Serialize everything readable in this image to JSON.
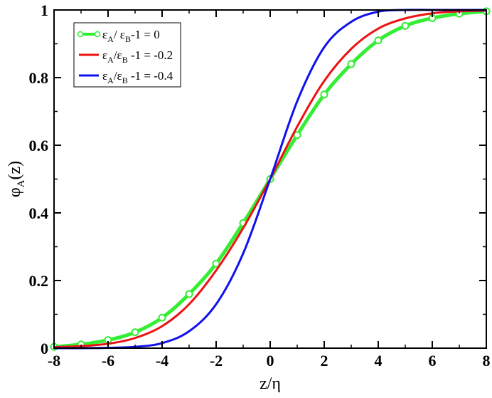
{
  "chart_data": {
    "type": "line",
    "xlabel": "z/η",
    "ylabel": "φ_A(z)",
    "ylabel_parts": {
      "main": "φ",
      "sub": "A",
      "tail": "(z)"
    },
    "xlim": [
      -8,
      8
    ],
    "ylim": [
      0,
      1
    ],
    "x_ticks": [
      "-8",
      "-6",
      "-4",
      "-2",
      "0",
      "2",
      "4",
      "6",
      "8"
    ],
    "y_ticks": [
      "0",
      "0.2",
      "0.4",
      "0.6",
      "0.8",
      "1"
    ],
    "grid": false,
    "legend_position": "top-left",
    "series": [
      {
        "name": "εA/ εB-1 = 0",
        "legend": {
          "e1": "ε",
          "s1": "A",
          "mid": "/ ε",
          "s2": "B",
          "tail": "-1 = 0"
        },
        "color": "#33ee33",
        "marker": "open-circle",
        "x": [
          -8,
          -7,
          -6,
          -5,
          -4,
          -3,
          -2,
          -1,
          0,
          1,
          2,
          3,
          4,
          5,
          6,
          7,
          8
        ],
        "y": [
          0.004,
          0.011,
          0.024,
          0.047,
          0.09,
          0.16,
          0.25,
          0.37,
          0.5,
          0.63,
          0.75,
          0.84,
          0.91,
          0.953,
          0.976,
          0.989,
          0.996
        ]
      },
      {
        "name": "εA/εB -1 = -0.2",
        "legend": {
          "e1": "ε",
          "s1": "A",
          "mid": "/ε",
          "s2": "B",
          "tail": " -1 = -0.2"
        },
        "color": "#ee1111",
        "marker": "none",
        "x": [
          -8,
          -7,
          -6,
          -5,
          -4,
          -3,
          -2,
          -1,
          0,
          1,
          2,
          3,
          4,
          5,
          6,
          7,
          8
        ],
        "y": [
          0.003,
          0.006,
          0.013,
          0.03,
          0.065,
          0.13,
          0.23,
          0.355,
          0.5,
          0.655,
          0.79,
          0.885,
          0.945,
          0.975,
          0.99,
          0.996,
          0.998
        ]
      },
      {
        "name": "εA/εB -1 = -0.4",
        "legend": {
          "e1": "ε",
          "s1": "A",
          "mid": "/ε",
          "s2": "B",
          "tail": " -1 = -0.4"
        },
        "color": "#1111ee",
        "marker": "none",
        "x": [
          -8,
          -7,
          -6,
          -5,
          -4,
          -3,
          -2,
          -1,
          0,
          1,
          2,
          3,
          4,
          5,
          6,
          7,
          8
        ],
        "y": [
          0.0,
          0.0,
          0.001,
          0.004,
          0.015,
          0.05,
          0.13,
          0.28,
          0.5,
          0.73,
          0.89,
          0.965,
          0.995,
          1.0,
          1.0,
          1.0,
          1.0
        ]
      }
    ]
  }
}
